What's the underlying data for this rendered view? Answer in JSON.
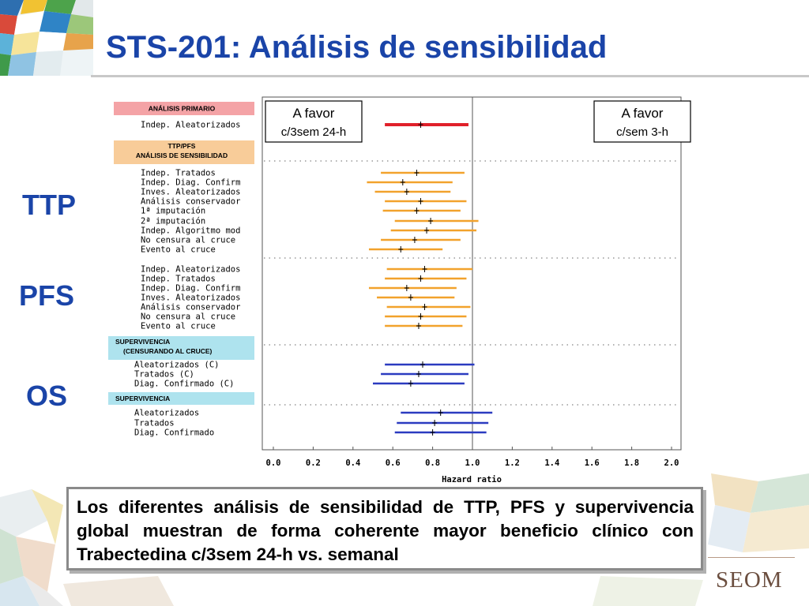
{
  "slide": {
    "title": "STS-201: Análisis de sensibilidad",
    "side_labels": {
      "ttp": "TTP",
      "pfs": "PFS",
      "os": "OS"
    },
    "note": "Los diferentes análisis de sensibilidad de TTP, PFS y supervivencia global muestran de forma coherente mayor beneficio clínico con Trabectedina c/3sem 24-h vs. semanal",
    "logo": "SEOM"
  },
  "chart_data": {
    "type": "forest",
    "xlabel": "Hazard ratio",
    "xlim": [
      0.0,
      2.0
    ],
    "xticks": [
      "0.0",
      "0.2",
      "0.4",
      "0.6",
      "0.8",
      "1.0",
      "1.2",
      "1.4",
      "1.6",
      "1.8",
      "2.0"
    ],
    "reference_line": 1.0,
    "favor_left": [
      "A favor",
      "c/3sem 24-h"
    ],
    "favor_right": [
      "A favor",
      "c/sem 3-h"
    ],
    "colors": {
      "primary": "#e0202a",
      "ttp_pfs": "#f2a22c",
      "os": "#2b3bc0"
    },
    "sections": [
      {
        "header": [
          "ANÁLISIS PRIMARIO"
        ],
        "header_color": "#f4a3a6",
        "group": "primary",
        "rows": [
          {
            "label": "Indep. Aleatorizados",
            "hr": 0.74,
            "lo": 0.56,
            "hi": 0.98
          }
        ]
      },
      {
        "header": [
          "TTP/PFS",
          "ANÁLISIS DE SENSIBILIDAD"
        ],
        "header_color": "#f8cc99",
        "group": "ttp_pfs",
        "rows": [
          {
            "label": "Indep. Tratados",
            "hr": 0.72,
            "lo": 0.54,
            "hi": 0.96
          },
          {
            "label": "Indep. Diag. Confirm",
            "hr": 0.65,
            "lo": 0.47,
            "hi": 0.9
          },
          {
            "label": "Inves. Aleatorizados",
            "hr": 0.67,
            "lo": 0.51,
            "hi": 0.89
          },
          {
            "label": "Análisis conservador",
            "hr": 0.74,
            "lo": 0.56,
            "hi": 0.97
          },
          {
            "label": "1ª imputación",
            "hr": 0.72,
            "lo": 0.55,
            "hi": 0.94
          },
          {
            "label": "2ª imputación",
            "hr": 0.79,
            "lo": 0.61,
            "hi": 1.03
          },
          {
            "label": "Indep. Algoritmo mod",
            "hr": 0.77,
            "lo": 0.59,
            "hi": 1.02
          },
          {
            "label": "No censura al cruce",
            "hr": 0.71,
            "lo": 0.54,
            "hi": 0.94
          },
          {
            "label": "Evento al cruce",
            "hr": 0.64,
            "lo": 0.48,
            "hi": 0.85
          },
          {
            "label": "Indep. Aleatorizados",
            "hr": 0.76,
            "lo": 0.57,
            "hi": 1.0
          },
          {
            "label": "Indep. Tratados",
            "hr": 0.74,
            "lo": 0.56,
            "hi": 0.97
          },
          {
            "label": "Indep. Diag. Confirm",
            "hr": 0.67,
            "lo": 0.48,
            "hi": 0.92
          },
          {
            "label": "Inves. Aleatorizados",
            "hr": 0.69,
            "lo": 0.52,
            "hi": 0.91
          },
          {
            "label": "Análisis conservador",
            "hr": 0.76,
            "lo": 0.57,
            "hi": 0.99
          },
          {
            "label": "No censura al cruce",
            "hr": 0.74,
            "lo": 0.56,
            "hi": 0.97
          },
          {
            "label": "Evento al cruce",
            "hr": 0.73,
            "lo": 0.56,
            "hi": 0.95
          }
        ]
      },
      {
        "header": [
          "SUPERVIVENCIA",
          "(CENSURANDO AL CRUCE)"
        ],
        "header_color": "#aee3ee",
        "group": "os",
        "rows": [
          {
            "label": "Aleatorizados (C)",
            "hr": 0.75,
            "lo": 0.56,
            "hi": 1.01
          },
          {
            "label": "Tratados (C)",
            "hr": 0.73,
            "lo": 0.54,
            "hi": 0.98
          },
          {
            "label": "Diag. Confirmado (C)",
            "hr": 0.69,
            "lo": 0.5,
            "hi": 0.96
          }
        ]
      },
      {
        "header": [
          "SUPERVIVENCIA"
        ],
        "header_color": "#aee3ee",
        "group": "os",
        "rows": [
          {
            "label": "Aleatorizados",
            "hr": 0.84,
            "lo": 0.64,
            "hi": 1.1
          },
          {
            "label": "Tratados",
            "hr": 0.81,
            "lo": 0.62,
            "hi": 1.08
          },
          {
            "label": "Diag. Confirmado",
            "hr": 0.8,
            "lo": 0.61,
            "hi": 1.07
          }
        ]
      }
    ]
  }
}
